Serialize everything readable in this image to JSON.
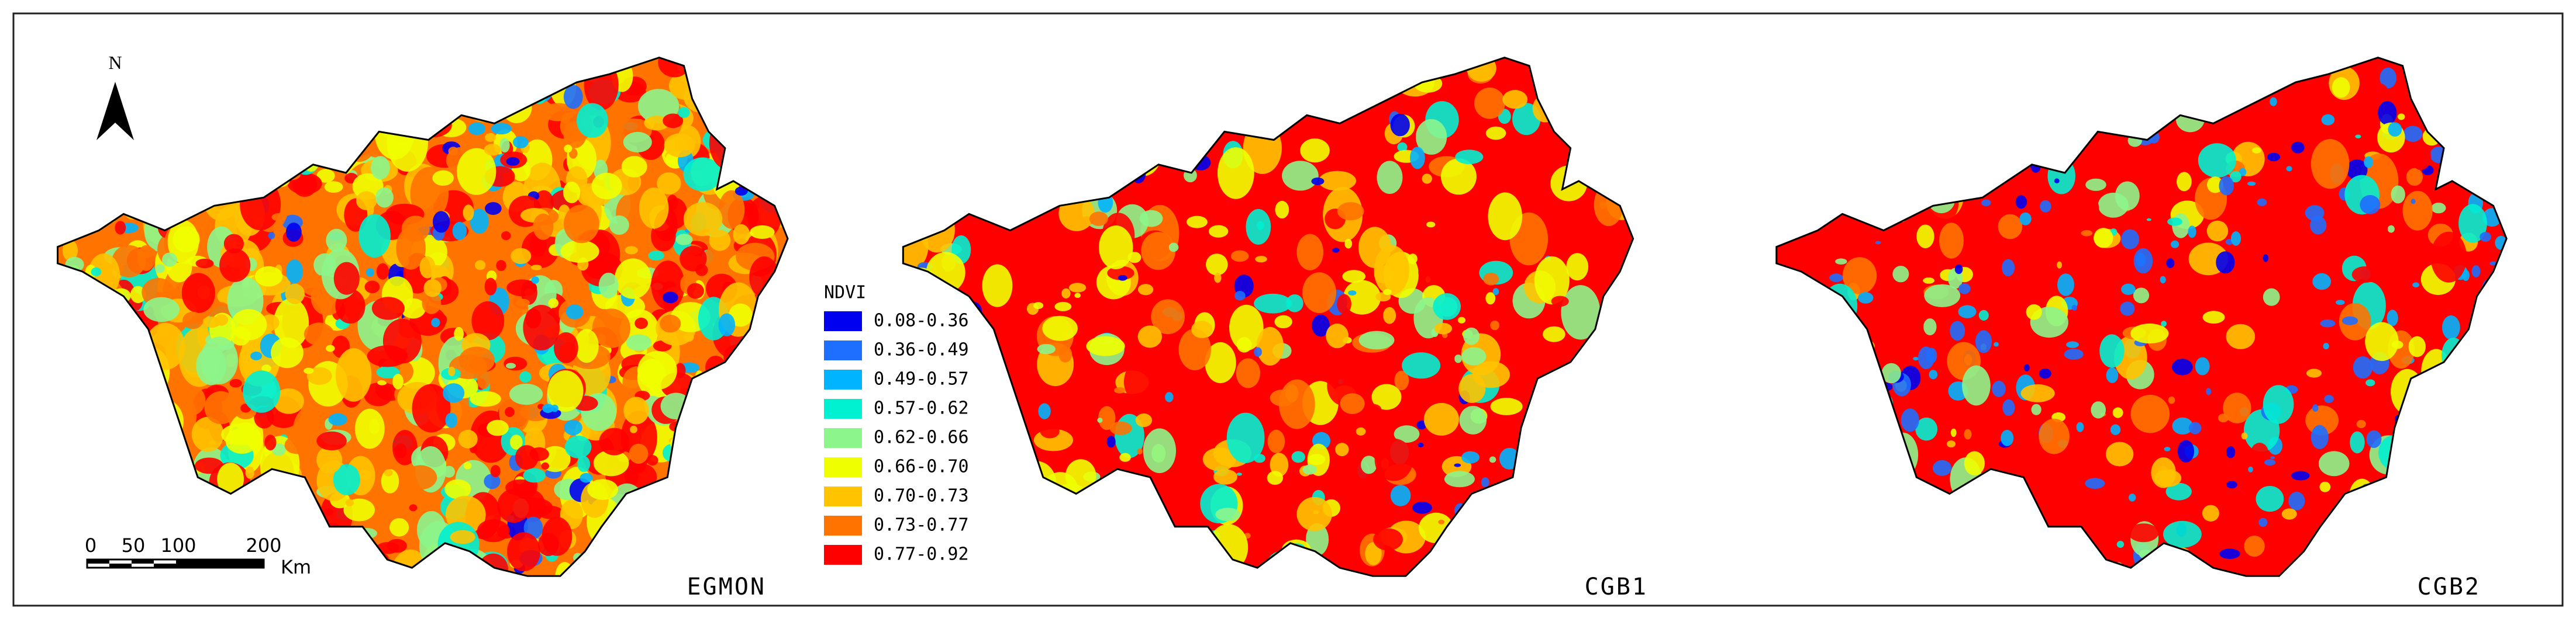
{
  "north_label": "N",
  "legend": {
    "title": "NDVI",
    "items": [
      {
        "label": "0.08-0.36",
        "color": "#0000f0"
      },
      {
        "label": "0.36-0.49",
        "color": "#1e6eff"
      },
      {
        "label": "0.49-0.57",
        "color": "#00b4ff"
      },
      {
        "label": "0.57-0.62",
        "color": "#00f0d2"
      },
      {
        "label": "0.62-0.66",
        "color": "#8cf58c"
      },
      {
        "label": "0.66-0.70",
        "color": "#f0ff00"
      },
      {
        "label": "0.70-0.73",
        "color": "#ffc300"
      },
      {
        "label": "0.73-0.77",
        "color": "#ff7300"
      },
      {
        "label": "0.77-0.92",
        "color": "#ff0000"
      }
    ]
  },
  "scale_bar": {
    "labels": [
      "0",
      "50",
      "100",
      "200"
    ],
    "unit": "Km"
  },
  "maps": [
    {
      "label": "EGMON"
    },
    {
      "label": "CGB1"
    },
    {
      "label": "CGB2"
    }
  ]
}
